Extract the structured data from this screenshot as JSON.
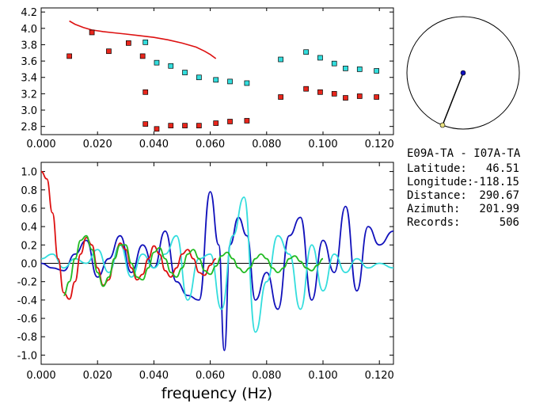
{
  "chart_data": [
    {
      "type": "scatter",
      "xlim": [
        0.0,
        0.125
      ],
      "ylim": [
        2.7,
        4.25
      ],
      "x_ticks": [
        "0.000",
        "0.020",
        "0.040",
        "0.060",
        "0.080",
        "0.100",
        "0.120"
      ],
      "y_ticks": [
        "2.8",
        "3.0",
        "3.2",
        "3.4",
        "3.6",
        "3.8",
        "4.0",
        "4.2"
      ],
      "grid": false,
      "colors": {
        "red": "#e8261c",
        "cyan": "#33dddd",
        "line": "#dd1111"
      },
      "series": [
        {
          "kind": "line",
          "color": "#dd1111",
          "points": [
            [
              0.01,
              4.09
            ],
            [
              0.012,
              4.05
            ],
            [
              0.015,
              4.01
            ],
            [
              0.018,
              3.98
            ],
            [
              0.022,
              3.96
            ],
            [
              0.026,
              3.945
            ],
            [
              0.03,
              3.93
            ],
            [
              0.035,
              3.91
            ],
            [
              0.04,
              3.89
            ],
            [
              0.045,
              3.86
            ],
            [
              0.05,
              3.82
            ],
            [
              0.055,
              3.77
            ],
            [
              0.058,
              3.72
            ],
            [
              0.06,
              3.68
            ],
            [
              0.062,
              3.63
            ]
          ]
        },
        {
          "kind": "markers",
          "color": "#e8261c",
          "points": [
            [
              0.01,
              3.66
            ],
            [
              0.018,
              3.95
            ],
            [
              0.024,
              3.72
            ],
            [
              0.031,
              3.82
            ],
            [
              0.036,
              3.66
            ],
            [
              0.037,
              3.22
            ],
            [
              0.037,
              2.83
            ],
            [
              0.041,
              2.77
            ],
            [
              0.046,
              2.81
            ],
            [
              0.051,
              2.81
            ],
            [
              0.056,
              2.81
            ],
            [
              0.062,
              2.84
            ],
            [
              0.067,
              2.86
            ],
            [
              0.073,
              2.87
            ],
            [
              0.085,
              3.16
            ],
            [
              0.094,
              3.26
            ],
            [
              0.099,
              3.22
            ],
            [
              0.104,
              3.2
            ],
            [
              0.108,
              3.15
            ],
            [
              0.113,
              3.17
            ],
            [
              0.119,
              3.16
            ]
          ]
        },
        {
          "kind": "markers",
          "color": "#33dddd",
          "points": [
            [
              0.037,
              3.83
            ],
            [
              0.041,
              3.58
            ],
            [
              0.046,
              3.54
            ],
            [
              0.051,
              3.46
            ],
            [
              0.056,
              3.4
            ],
            [
              0.062,
              3.37
            ],
            [
              0.067,
              3.35
            ],
            [
              0.073,
              3.33
            ],
            [
              0.085,
              3.62
            ],
            [
              0.094,
              3.71
            ],
            [
              0.099,
              3.64
            ],
            [
              0.104,
              3.57
            ],
            [
              0.108,
              3.51
            ],
            [
              0.113,
              3.5
            ],
            [
              0.119,
              3.48
            ]
          ]
        }
      ]
    },
    {
      "type": "line",
      "xlabel": "frequency (Hz)",
      "xlim": [
        0.0,
        0.125
      ],
      "ylim": [
        -1.1,
        1.1
      ],
      "x_ticks": [
        "0.000",
        "0.020",
        "0.040",
        "0.060",
        "0.080",
        "0.100",
        "0.120"
      ],
      "y_ticks": [
        "1.0",
        "0.8",
        "0.6",
        "0.4",
        "0.2",
        "0.0",
        "-0.2",
        "-0.4",
        "-0.6",
        "-0.8",
        "-1.0"
      ],
      "grid": false,
      "zero_line": true,
      "series": [
        {
          "color": "#1111bb",
          "x": [
            0.0,
            0.004,
            0.008,
            0.012,
            0.016,
            0.02,
            0.024,
            0.028,
            0.032,
            0.036,
            0.04,
            0.044,
            0.048,
            0.052,
            0.056,
            0.06,
            0.063,
            0.065,
            0.067,
            0.07,
            0.073,
            0.076,
            0.08,
            0.084,
            0.088,
            0.092,
            0.096,
            0.1,
            0.104,
            0.108,
            0.112,
            0.116,
            0.12,
            0.125
          ],
          "y": [
            0.0,
            -0.05,
            -0.08,
            0.1,
            0.25,
            -0.15,
            0.05,
            0.3,
            -0.1,
            0.2,
            -0.05,
            0.35,
            -0.2,
            -0.35,
            -0.4,
            0.78,
            0.2,
            -0.95,
            0.2,
            0.5,
            0.3,
            -0.4,
            -0.1,
            -0.5,
            0.3,
            0.5,
            -0.4,
            0.25,
            -0.1,
            0.62,
            -0.3,
            0.4,
            0.2,
            0.35
          ]
        },
        {
          "color": "#33dddd",
          "x": [
            0.0,
            0.004,
            0.008,
            0.012,
            0.016,
            0.02,
            0.024,
            0.028,
            0.032,
            0.036,
            0.04,
            0.044,
            0.048,
            0.052,
            0.056,
            0.06,
            0.064,
            0.068,
            0.072,
            0.076,
            0.08,
            0.084,
            0.088,
            0.092,
            0.096,
            0.1,
            0.104,
            0.108,
            0.112,
            0.116,
            0.12,
            0.125
          ],
          "y": [
            0.05,
            0.1,
            -0.05,
            0.05,
            0.0,
            0.15,
            -0.1,
            0.2,
            -0.15,
            0.1,
            -0.05,
            0.1,
            0.3,
            -0.4,
            0.05,
            0.1,
            -0.5,
            0.3,
            0.72,
            -0.75,
            -0.2,
            0.3,
            0.1,
            -0.5,
            0.2,
            -0.3,
            0.1,
            -0.1,
            0.05,
            -0.05,
            0.0,
            -0.05
          ]
        },
        {
          "color": "#dd1111",
          "x": [
            0.0,
            0.002,
            0.004,
            0.006,
            0.008,
            0.01,
            0.012,
            0.014,
            0.016,
            0.018,
            0.02,
            0.022,
            0.024,
            0.026,
            0.028,
            0.03,
            0.032,
            0.034,
            0.036,
            0.038,
            0.04,
            0.042,
            0.044,
            0.046,
            0.048,
            0.05,
            0.052,
            0.054,
            0.056,
            0.058,
            0.06,
            0.062
          ],
          "y": [
            1.0,
            0.92,
            0.55,
            0.05,
            -0.32,
            -0.39,
            -0.2,
            0.1,
            0.28,
            0.2,
            -0.05,
            -0.24,
            -0.18,
            0.05,
            0.22,
            0.15,
            -0.05,
            -0.18,
            -0.12,
            0.05,
            0.19,
            0.1,
            -0.08,
            -0.15,
            -0.05,
            0.1,
            0.15,
            0.05,
            -0.1,
            -0.13,
            -0.02,
            0.05
          ]
        },
        {
          "color": "#22bb22",
          "x": [
            0.008,
            0.01,
            0.012,
            0.014,
            0.016,
            0.018,
            0.02,
            0.022,
            0.024,
            0.026,
            0.028,
            0.03,
            0.032,
            0.034,
            0.036,
            0.038,
            0.04,
            0.042,
            0.044,
            0.046,
            0.048,
            0.05,
            0.052,
            0.054,
            0.056,
            0.058,
            0.06,
            0.062,
            0.064,
            0.066,
            0.068,
            0.07,
            0.072,
            0.074,
            0.076,
            0.078,
            0.08,
            0.082,
            0.084,
            0.086,
            0.088,
            0.09,
            0.092,
            0.094,
            0.096,
            0.098,
            0.1
          ],
          "y": [
            -0.35,
            -0.2,
            0.05,
            0.25,
            0.3,
            0.15,
            -0.1,
            -0.25,
            -0.15,
            0.05,
            0.2,
            0.2,
            0.0,
            -0.15,
            -0.18,
            -0.05,
            0.12,
            0.17,
            0.05,
            -0.1,
            -0.15,
            -0.05,
            0.1,
            0.15,
            0.05,
            -0.08,
            -0.12,
            -0.03,
            0.08,
            0.12,
            0.05,
            -0.05,
            -0.1,
            -0.05,
            0.05,
            0.1,
            0.05,
            -0.05,
            -0.1,
            -0.05,
            0.05,
            0.08,
            0.02,
            -0.05,
            -0.08,
            -0.02,
            0.05
          ]
        }
      ]
    }
  ],
  "map": {
    "circle_color": "#000000",
    "station_a_color": "#1111bb",
    "station_b_color": "#e8e080"
  },
  "info": {
    "title": "E09A-TA  -  I07A-TA",
    "rows": [
      {
        "label": "Latitude:",
        "value": "46.51"
      },
      {
        "label": "Longitude:",
        "value": "-118.15"
      },
      {
        "label": "Distance:",
        "value": "290.67"
      },
      {
        "label": "Azimuth:",
        "value": "201.99"
      },
      {
        "label": "Records:",
        "value": "506"
      }
    ]
  }
}
